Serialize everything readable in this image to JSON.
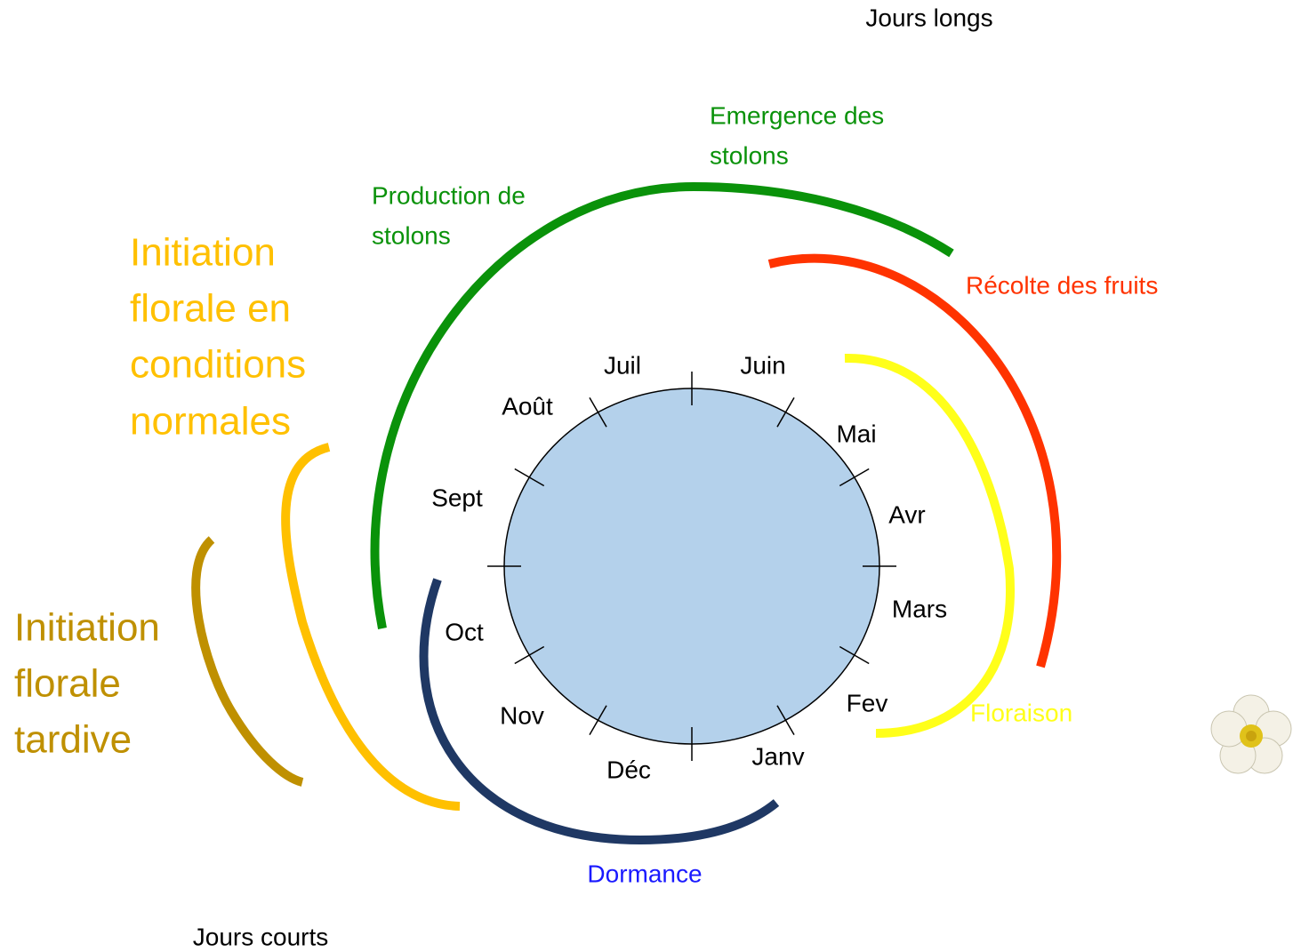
{
  "corners": {
    "long_days": "Jours longs",
    "short_days": "Jours courts"
  },
  "months": [
    "Juin",
    "Mai",
    "Avr",
    "Mars",
    "Fev",
    "Janv",
    "Déc",
    "Nov",
    "Oct",
    "Sept",
    "Août",
    "Juil"
  ],
  "phases": {
    "emergence": [
      "Emergence des",
      "stolons"
    ],
    "production": [
      "Production de",
      "stolons"
    ],
    "harvest": [
      "Récolte des fruits"
    ],
    "flowering": [
      "Floraison"
    ],
    "dormancy": [
      "Dormance"
    ],
    "initiation_normal": [
      "Initiation",
      "florale en",
      "conditions",
      "normales"
    ],
    "initiation_late": [
      "Initiation",
      "florale",
      "tardive"
    ]
  }
}
